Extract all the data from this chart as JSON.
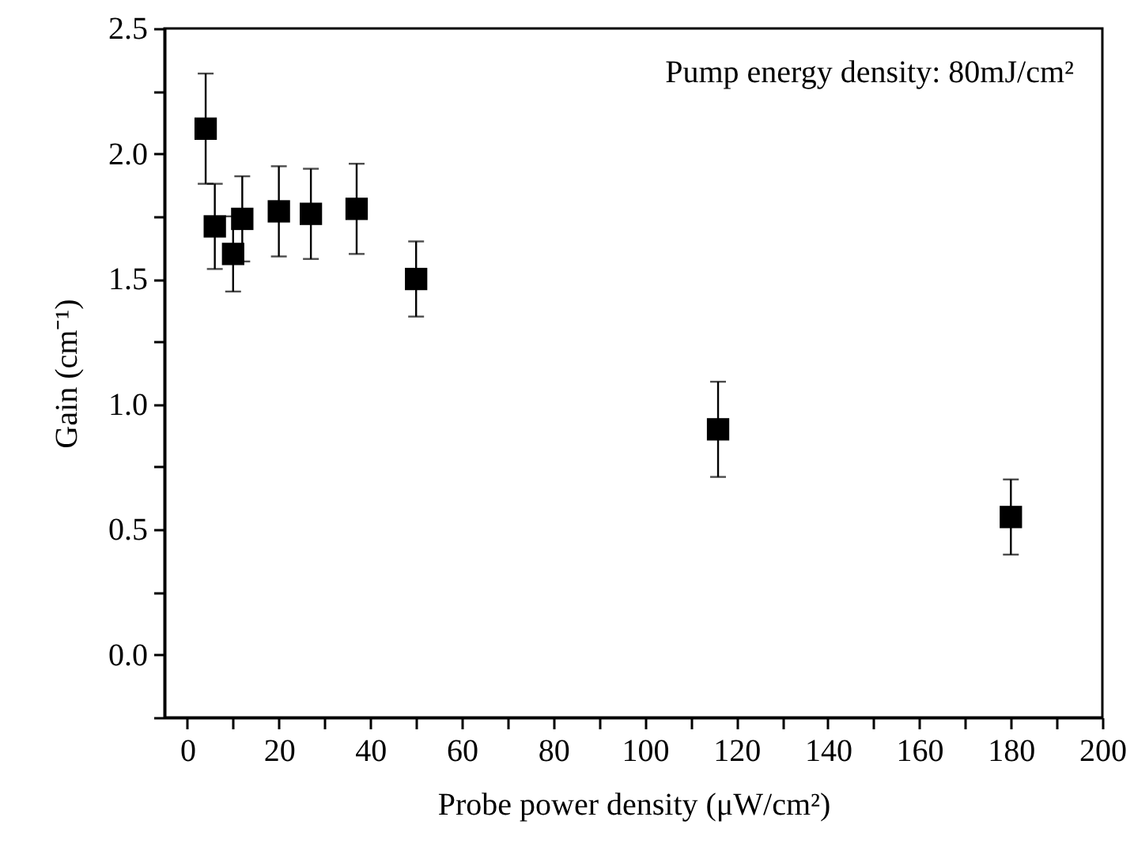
{
  "chart_data": {
    "type": "scatter",
    "xlabel": "Probe power density (μW/cm²)",
    "ylabel": "Gain (cm⁻¹)",
    "annotations": [
      "Pump energy density: 80mJ/cm²"
    ],
    "x": [
      4,
      6,
      10,
      12,
      20,
      27,
      37,
      50,
      116,
      180
    ],
    "series": [
      {
        "color": "#000000",
        "values": [
          2.1,
          1.71,
          1.6,
          1.74,
          1.77,
          1.76,
          1.78,
          1.5,
          0.9,
          0.55
        ],
        "errors": [
          0.22,
          0.17,
          0.15,
          0.17,
          0.18,
          0.18,
          0.18,
          0.15,
          0.19,
          0.15
        ]
      }
    ],
    "marker": "square",
    "grid": false,
    "xlim": [
      -5,
      200
    ],
    "xticks": [
      0,
      {
        "value": 10,
        "label": null
      },
      20,
      {
        "value": 30,
        "label": null
      },
      40,
      {
        "value": 50,
        "label": null
      },
      60,
      {
        "value": 70,
        "label": null
      },
      80,
      {
        "value": 90,
        "label": null
      },
      100,
      {
        "value": 110,
        "label": null
      },
      120,
      {
        "value": 130,
        "label": null
      },
      140,
      {
        "value": 150,
        "label": null
      },
      160,
      {
        "value": 170,
        "label": null
      },
      180,
      {
        "value": 190,
        "label": null
      },
      200
    ],
    "ylim": [
      -0.25,
      2.5
    ],
    "yticks": [
      {
        "value": -0.25,
        "label": null
      },
      {
        "value": 0,
        "label": "0.0"
      },
      {
        "value": 0.25,
        "label": null
      },
      {
        "value": 0.5,
        "label": "0.5"
      },
      {
        "value": 0.75,
        "label": null
      },
      {
        "value": 1,
        "label": "1.0"
      },
      {
        "value": 1.25,
        "label": null
      },
      {
        "value": 1.5,
        "label": "1.5"
      },
      {
        "value": 1.75,
        "label": null
      },
      {
        "value": 2,
        "label": "2.0"
      },
      {
        "value": 2.25,
        "label": null
      },
      {
        "value": 2.5,
        "label": "2.5"
      }
    ]
  }
}
